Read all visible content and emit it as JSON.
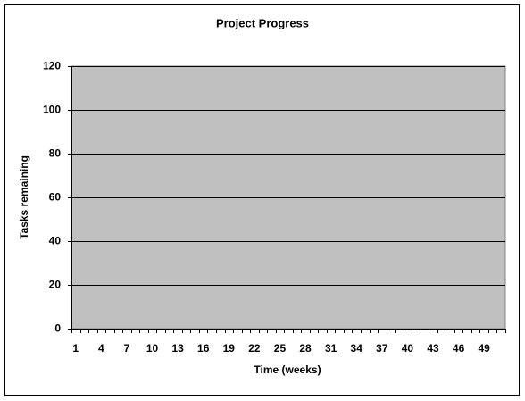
{
  "chart_data": {
    "type": "line",
    "title": "Project Progress",
    "x_label": "Time (weeks)",
    "y_label": "Tasks remaining",
    "categories": [
      1,
      null,
      null,
      4,
      null,
      null,
      7,
      null,
      null,
      10,
      null,
      null,
      13,
      null,
      null,
      16,
      null,
      null,
      19,
      null,
      null,
      22,
      null,
      null,
      25,
      null,
      null,
      28,
      null,
      null,
      31,
      null,
      null,
      34,
      null,
      null,
      37,
      null,
      null,
      40,
      null,
      null,
      43,
      null,
      null,
      46,
      null,
      null,
      49,
      null,
      null
    ],
    "ylim": [
      0,
      120
    ],
    "yticks": [
      0,
      20,
      40,
      60,
      80,
      100,
      120
    ],
    "grid": true,
    "plot_background": "#c0c0c0"
  }
}
